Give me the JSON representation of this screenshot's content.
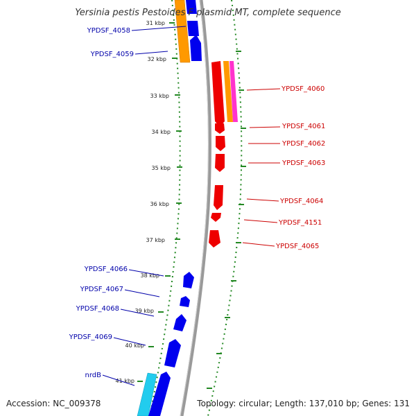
{
  "title": "Yersinia pestis Pestoides F plasmid MT, complete sequence",
  "accession": "Accession: NC_009378",
  "topology": "Topology: circular; Length: 137,010 bp; Genes: 131",
  "colors": {
    "forward_label": "#0000aa",
    "reverse_label": "#cc0000",
    "forward_cds": "#0000ee",
    "reverse_cds": "#ee0000",
    "orange_feature": "#ff9900",
    "magenta_feature": "#ff33cc",
    "cyan_feature": "#22ccee",
    "backbone": "#888888",
    "ticks": "#228822"
  },
  "kbp_labels": [
    "31 kbp",
    "32 kbp",
    "33 kbp",
    "34 kbp",
    "35 kbp",
    "36 kbp",
    "37 kbp",
    "38 kbp",
    "39 kbp",
    "40 kbp",
    "41 kbp"
  ],
  "forward_genes": [
    "YPDSF_4058",
    "YPDSF_4059",
    "YPDSF_4066",
    "YPDSF_4067",
    "YPDSF_4068",
    "YPDSF_4069",
    "nrdB"
  ],
  "reverse_genes": [
    "YPDSF_4060",
    "YPDSF_4061",
    "YPDSF_4062",
    "YPDSF_4063",
    "YPDSF_4064",
    "YPDSF_4151",
    "YPDSF_4065"
  ]
}
